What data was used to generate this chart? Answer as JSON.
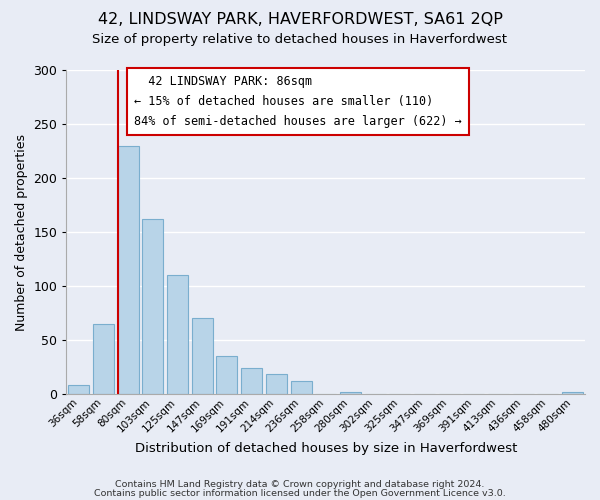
{
  "title": "42, LINDSWAY PARK, HAVERFORDWEST, SA61 2QP",
  "subtitle": "Size of property relative to detached houses in Haverfordwest",
  "xlabel": "Distribution of detached houses by size in Haverfordwest",
  "ylabel": "Number of detached properties",
  "bar_labels": [
    "36sqm",
    "58sqm",
    "80sqm",
    "103sqm",
    "125sqm",
    "147sqm",
    "169sqm",
    "191sqm",
    "214sqm",
    "236sqm",
    "258sqm",
    "280sqm",
    "302sqm",
    "325sqm",
    "347sqm",
    "369sqm",
    "391sqm",
    "413sqm",
    "436sqm",
    "458sqm",
    "480sqm"
  ],
  "bar_values": [
    8,
    65,
    230,
    162,
    110,
    70,
    35,
    24,
    19,
    12,
    0,
    2,
    0,
    0,
    0,
    0,
    0,
    0,
    0,
    0,
    2
  ],
  "bar_color": "#b8d4e8",
  "bar_edge_color": "#7aaece",
  "vline_x_index": 2,
  "vline_color": "#cc0000",
  "ylim": [
    0,
    300
  ],
  "yticks": [
    0,
    50,
    100,
    150,
    200,
    250,
    300
  ],
  "annotation_title": "42 LINDSWAY PARK: 86sqm",
  "annotation_line1": "← 15% of detached houses are smaller (110)",
  "annotation_line2": "84% of semi-detached houses are larger (622) →",
  "annotation_box_color": "#ffffff",
  "annotation_box_edge": "#cc0000",
  "footer1": "Contains HM Land Registry data © Crown copyright and database right 2024.",
  "footer2": "Contains public sector information licensed under the Open Government Licence v3.0.",
  "background_color": "#e8ecf5",
  "grid_color": "#ffffff"
}
